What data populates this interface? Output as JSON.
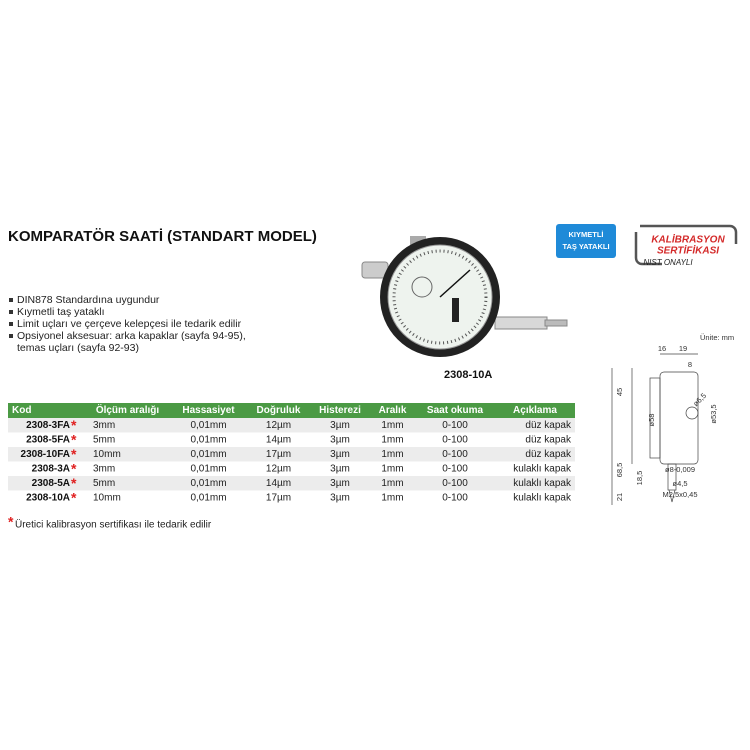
{
  "header": {
    "title": "KOMPARATÖR SAATİ (STANDART MODEL)"
  },
  "badges": {
    "gem": [
      "KIYMETLİ",
      "TAŞ YATAKLI"
    ],
    "calibration": [
      "KALİBRASYON",
      "SERTİFİKASI",
      "NIST ONAYLI"
    ]
  },
  "features": [
    "DIN878 Standardına uygundur",
    "Kıymetli taş yataklı",
    "Limit uçları ve çerçeve kelepçesi ile tedarik edilir",
    [
      "Opsiyonel aksesuar: arka kapaklar (sayfa 94-95),",
      "temas uçları (sayfa 92-93)"
    ]
  ],
  "product_image": {
    "caption": "2308-10A"
  },
  "drawing": {
    "unit": "Ünite: mm",
    "dims": [
      "16",
      "19",
      "8",
      "45",
      "ø58",
      "ø6,5",
      "ø53,5",
      "68,5",
      "18,5",
      "ø8-0,009",
      "21",
      "ø4,5",
      "M2,5x0,45"
    ]
  },
  "table": {
    "columns": [
      "Kod",
      "Ölçüm aralığı",
      "Hassasiyet",
      "Doğruluk",
      "Histerezi",
      "Aralık",
      "Saat okuma",
      "Açıklama"
    ],
    "star": "*",
    "rows": [
      [
        "2308-3FA",
        "3mm",
        "0,01mm",
        "12µm",
        "3µm",
        "1mm",
        "0-100",
        "düz kapak"
      ],
      [
        "2308-5FA",
        "5mm",
        "0,01mm",
        "14µm",
        "3µm",
        "1mm",
        "0-100",
        "düz kapak"
      ],
      [
        "2308-10FA",
        "10mm",
        "0,01mm",
        "17µm",
        "3µm",
        "1mm",
        "0-100",
        "düz kapak"
      ],
      [
        "2308-3A",
        "3mm",
        "0,01mm",
        "12µm",
        "3µm",
        "1mm",
        "0-100",
        "kulaklı kapak"
      ],
      [
        "2308-5A",
        "5mm",
        "0,01mm",
        "14µm",
        "3µm",
        "1mm",
        "0-100",
        "kulaklı kapak"
      ],
      [
        "2308-10A",
        "10mm",
        "0,01mm",
        "17µm",
        "3µm",
        "1mm",
        "0-100",
        "kulaklı kapak"
      ]
    ],
    "footnote": "Üretici kalibrasyon sertifikası ile tedarik edilir"
  }
}
